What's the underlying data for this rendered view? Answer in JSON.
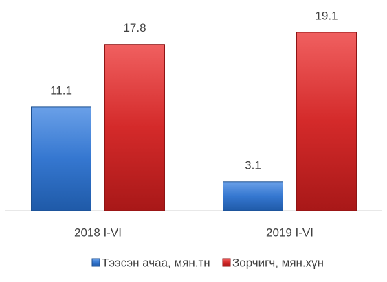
{
  "chart_data": {
    "type": "bar",
    "categories": [
      "2018 I-VI",
      "2019 I-VI"
    ],
    "series": [
      {
        "name": "Тээсэн ачаа, мян.тн",
        "color": "#2e6fc7",
        "values": [
          11.1,
          3.1
        ]
      },
      {
        "name": "Зорчигч, мян.хүн",
        "color": "#d42a2a",
        "values": [
          17.8,
          19.1
        ]
      }
    ],
    "legend": "bottom"
  }
}
